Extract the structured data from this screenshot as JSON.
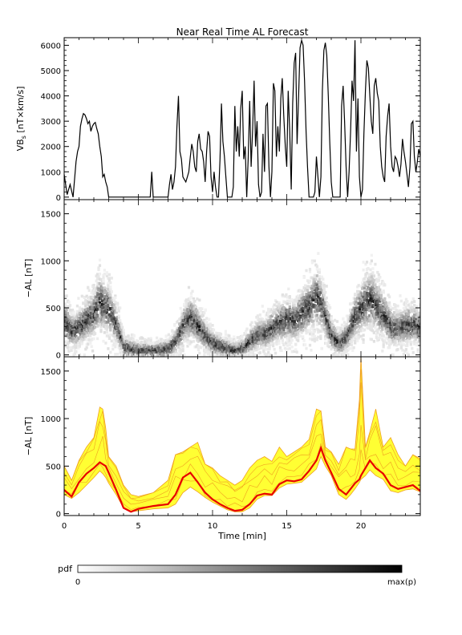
{
  "title": "Near Real Time AL Forecast",
  "colors": {
    "axis": "#000000",
    "series": "#000000",
    "band_fill": "#ffff33",
    "band_lines": "#f0a020",
    "median": "#e80000",
    "pdf_dark": "#000000"
  },
  "chart_data": [
    {
      "type": "line",
      "panel": "top",
      "ylabel": "VB",
      "ylabel_sub": "s",
      "ylabel_unit": " [nT×km/s]",
      "xlim": [
        0,
        24
      ],
      "ylim": [
        -100,
        6300
      ],
      "yticks": [
        0,
        1000,
        2000,
        3000,
        4000,
        5000,
        6000
      ],
      "ytick_labels": [
        "0",
        "1000",
        "2000",
        "3000",
        "4000",
        "5000",
        "6000"
      ],
      "series": [
        {
          "x": [
            0,
            0.2,
            0.4,
            0.6,
            0.8,
            0.9,
            1.0,
            1.1,
            1.2,
            1.3,
            1.4,
            1.5,
            1.6,
            1.7,
            1.8,
            1.9,
            2.0,
            2.1,
            2.2,
            2.3,
            2.4,
            2.5,
            2.6,
            2.7,
            2.8,
            2.9,
            3.0,
            3.1,
            3.2,
            3.4,
            3.6,
            3.8,
            4.0,
            4.5,
            5.0,
            5.2,
            5.4,
            5.6,
            5.8,
            5.9,
            6.0,
            6.1,
            6.2,
            6.6,
            6.8,
            7.0,
            7.1,
            7.2,
            7.3,
            7.4,
            7.5,
            7.6,
            7.7,
            7.8,
            7.9,
            8.0,
            8.1,
            8.2,
            8.3,
            8.4,
            8.5,
            8.6,
            8.7,
            8.8,
            8.9,
            9.0,
            9.1,
            9.2,
            9.3,
            9.4,
            9.5,
            9.6,
            9.7,
            9.8,
            9.9,
            10.0,
            10.1,
            10.2,
            10.3,
            10.4,
            10.5,
            10.6,
            10.7,
            10.8,
            10.9,
            11.0,
            11.1,
            11.2,
            11.3,
            11.4,
            11.5,
            11.6,
            11.7,
            11.8,
            11.9,
            12.0,
            12.1,
            12.2,
            12.3,
            12.4,
            12.5,
            12.6,
            12.7,
            12.8,
            12.9,
            13.0,
            13.1,
            13.2,
            13.3,
            13.4,
            13.5,
            13.6,
            13.7,
            13.8,
            13.9,
            14.0,
            14.1,
            14.2,
            14.3,
            14.4,
            14.5,
            14.6,
            14.7,
            14.8,
            14.9,
            15.0,
            15.1,
            15.2,
            15.3,
            15.4,
            15.5,
            15.6,
            15.7,
            15.8,
            15.9,
            16.0,
            16.1,
            16.2,
            16.3,
            16.4,
            16.5,
            16.6,
            16.7,
            16.8,
            16.9,
            17.0,
            17.1,
            17.2,
            17.3,
            17.4,
            17.5,
            17.6,
            17.7,
            17.8,
            17.9,
            18.0,
            18.1,
            18.2,
            18.3,
            18.4,
            18.5,
            18.6,
            18.7,
            18.8,
            18.9,
            19.0,
            19.1,
            19.2,
            19.3,
            19.4,
            19.5,
            19.6,
            19.7,
            19.8,
            19.9,
            20.0,
            20.1,
            20.2,
            20.3,
            20.4,
            20.5,
            20.6,
            20.7,
            20.8,
            20.9,
            21.0,
            21.1,
            21.2,
            21.3,
            21.4,
            21.5,
            21.6,
            21.7,
            21.8,
            21.9,
            22.0,
            22.1,
            22.2,
            22.3,
            22.4,
            22.5,
            22.6,
            22.7,
            22.8,
            22.9,
            23.0,
            23.1,
            23.2,
            23.3,
            23.4,
            23.5,
            23.6,
            23.7,
            23.8,
            23.9,
            24.0
          ],
          "y": [
            900,
            100,
            500,
            0,
            1400,
            1800,
            2000,
            2800,
            3100,
            3300,
            3250,
            3100,
            2900,
            3000,
            2600,
            2800,
            2900,
            2950,
            2700,
            2500,
            2000,
            1600,
            800,
            900,
            600,
            400,
            0,
            0,
            0,
            0,
            0,
            0,
            0,
            0,
            0,
            0,
            0,
            0,
            0,
            1000,
            0,
            0,
            0,
            0,
            0,
            0,
            500,
            900,
            300,
            600,
            1200,
            2800,
            4000,
            1800,
            1500,
            800,
            700,
            600,
            800,
            1000,
            1600,
            2100,
            1800,
            1200,
            1000,
            2200,
            2500,
            1900,
            1800,
            1400,
            600,
            1800,
            2600,
            2400,
            800,
            200,
            1000,
            400,
            0,
            0,
            1500,
            3700,
            2200,
            1600,
            800,
            0,
            0,
            0,
            0,
            400,
            3600,
            1800,
            2800,
            1600,
            3500,
            4200,
            1500,
            2000,
            0,
            1500,
            3800,
            1200,
            2700,
            4600,
            2000,
            3000,
            500,
            0,
            200,
            2500,
            1000,
            3600,
            3700,
            1200,
            0,
            1000,
            4500,
            4200,
            1600,
            2800,
            1800,
            3900,
            4700,
            3200,
            2000,
            1200,
            4200,
            2600,
            300,
            3700,
            5300,
            5700,
            2100,
            4000,
            5900,
            6200,
            6000,
            4600,
            2600,
            1200,
            0,
            0,
            0,
            0,
            200,
            1600,
            800,
            0,
            800,
            4200,
            5800,
            6100,
            5600,
            4000,
            2200,
            600,
            0,
            0,
            0,
            0,
            0,
            0,
            3600,
            4400,
            3000,
            1200,
            0,
            1000,
            2600,
            4600,
            3800,
            6200,
            1800,
            3900,
            800,
            0,
            300,
            2500,
            4200,
            5400,
            5100,
            4000,
            3000,
            2500,
            4400,
            4700,
            4100,
            3800,
            2000,
            1200,
            800,
            600,
            2400,
            3200,
            3700,
            2000,
            1200,
            1000,
            1600,
            1500,
            1200,
            800,
            1300,
            2300,
            1800,
            1400,
            900,
            400,
            1200,
            2900,
            3000,
            1600,
            1000,
            1400,
            1900,
            1600
          ]
        }
      ]
    },
    {
      "type": "heatmap",
      "panel": "middle",
      "ylabel": "−AL [nT]",
      "xlim": [
        0,
        24
      ],
      "ylim": [
        -20,
        1650
      ],
      "yticks": [
        0,
        500,
        1000,
        1500
      ],
      "ytick_labels": [
        "0",
        "500",
        "1000",
        "1500"
      ],
      "center_curve": {
        "x": [
          0,
          0.5,
          1.0,
          1.5,
          2.0,
          2.3,
          2.6,
          3.0,
          3.5,
          4.0,
          5.0,
          6.0,
          7.0,
          7.5,
          8.0,
          8.5,
          9.0,
          9.5,
          10.0,
          11.0,
          11.5,
          12.0,
          12.5,
          13.0,
          13.5,
          14.0,
          14.5,
          15.0,
          15.5,
          16.0,
          16.5,
          17.0,
          17.3,
          17.6,
          18.0,
          18.5,
          19.0,
          19.5,
          20.0,
          20.3,
          20.6,
          21.0,
          21.5,
          22.0,
          22.5,
          23.0,
          23.5,
          24.0
        ],
        "y": [
          350,
          250,
          300,
          380,
          450,
          560,
          530,
          480,
          300,
          80,
          40,
          40,
          60,
          150,
          320,
          400,
          300,
          200,
          120,
          60,
          40,
          70,
          150,
          220,
          220,
          300,
          350,
          380,
          360,
          450,
          520,
          620,
          520,
          380,
          200,
          120,
          200,
          400,
          500,
          560,
          600,
          520,
          420,
          300,
          280,
          320,
          330,
          280
        ]
      },
      "color_scale": {
        "label": "pdf",
        "min_label": "0",
        "max_label": "max(p)"
      }
    },
    {
      "type": "area",
      "panel": "bottom",
      "ylabel": "−AL [nT]",
      "xlabel": "Time [min]",
      "xlim": [
        0,
        24
      ],
      "ylim": [
        -20,
        1650
      ],
      "xticks": [
        0,
        5,
        10,
        15,
        20
      ],
      "xtick_labels": [
        "0",
        "5",
        "10",
        "15",
        "20"
      ],
      "yticks": [
        0,
        500,
        1000,
        1500
      ],
      "ytick_labels": [
        "0",
        "500",
        "1000",
        "1500"
      ],
      "x": [
        0,
        0.5,
        1.0,
        1.5,
        2.0,
        2.4,
        2.6,
        2.8,
        3.0,
        3.5,
        4.0,
        4.5,
        5.0,
        6.0,
        7.0,
        7.5,
        8.0,
        8.5,
        9.0,
        9.5,
        10.0,
        10.5,
        11.0,
        11.5,
        12.0,
        12.5,
        13.0,
        13.5,
        14.0,
        14.5,
        15.0,
        15.5,
        16.0,
        16.5,
        17.0,
        17.3,
        17.6,
        18.0,
        18.5,
        19.0,
        19.3,
        19.6,
        19.9,
        20.0,
        20.3,
        20.6,
        21.0,
        21.5,
        22.0,
        22.5,
        23.0,
        23.5,
        24.0
      ],
      "lower": [
        200,
        160,
        220,
        300,
        380,
        450,
        420,
        380,
        320,
        200,
        60,
        20,
        30,
        50,
        60,
        100,
        220,
        280,
        230,
        170,
        120,
        80,
        40,
        20,
        20,
        60,
        150,
        190,
        190,
        270,
        310,
        320,
        330,
        400,
        470,
        600,
        500,
        400,
        200,
        150,
        200,
        260,
        330,
        360,
        400,
        460,
        400,
        360,
        240,
        220,
        250,
        260,
        230
      ],
      "upper": [
        500,
        350,
        560,
        700,
        800,
        1120,
        1100,
        900,
        600,
        500,
        300,
        200,
        180,
        220,
        350,
        620,
        650,
        700,
        750,
        520,
        480,
        400,
        350,
        300,
        350,
        480,
        560,
        600,
        550,
        700,
        600,
        650,
        700,
        780,
        1100,
        1080,
        700,
        650,
        520,
        700,
        680,
        680,
        1200,
        1650,
        700,
        860,
        1100,
        700,
        800,
        620,
        500,
        620,
        580
      ],
      "median": [
        250,
        180,
        330,
        420,
        480,
        540,
        520,
        500,
        430,
        250,
        60,
        20,
        50,
        80,
        100,
        200,
        380,
        430,
        330,
        220,
        150,
        100,
        60,
        30,
        40,
        100,
        190,
        210,
        200,
        310,
        350,
        340,
        360,
        450,
        560,
        690,
        560,
        430,
        260,
        200,
        260,
        320,
        360,
        400,
        480,
        560,
        480,
        420,
        300,
        260,
        280,
        300,
        240
      ]
    }
  ]
}
